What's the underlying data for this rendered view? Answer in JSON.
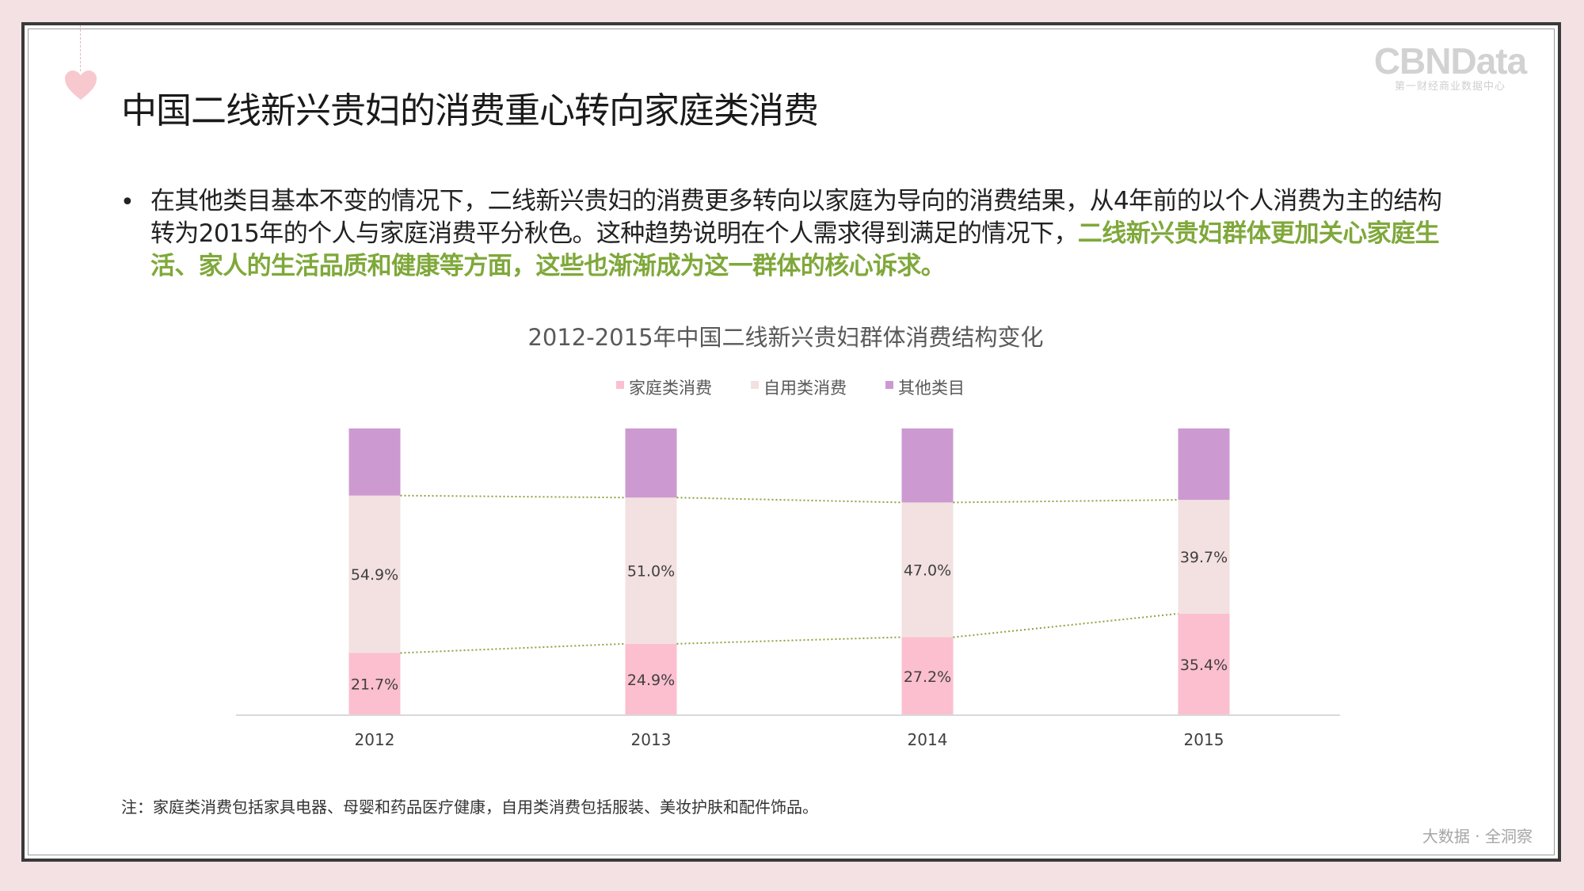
{
  "title": "中国二线新兴贵妇的消费重心转向家庭类消费",
  "logo": {
    "main": "CBNData",
    "sub": "第一财经商业数据中心"
  },
  "bullet": {
    "normal": "在其他类目基本不变的情况下，二线新兴贵妇的消费更多转向以家庭为导向的消费结果，从4年前的以个人消费为主的结构转为2015年的个人与家庭消费平分秋色。这种趋势说明在个人需求得到满足的情况下，",
    "highlight": "二线新兴贵妇群体更加关心家庭生活、家人的生活品质和健康等方面，这些也渐渐成为这一群体的核心诉求。"
  },
  "chart_data": {
    "type": "bar",
    "stacked": true,
    "title": "2012-2015年中国二线新兴贵妇群体消费结构变化",
    "categories": [
      "2012",
      "2013",
      "2014",
      "2015"
    ],
    "series": [
      {
        "name": "家庭类消费",
        "values": [
          21.7,
          24.9,
          27.2,
          35.4
        ],
        "labels": [
          "21.7%",
          "24.9%",
          "27.2%",
          "35.4%"
        ],
        "color": "#fbbfcf"
      },
      {
        "name": "自用类消费",
        "values": [
          54.9,
          51.0,
          47.0,
          39.7
        ],
        "labels": [
          "54.9%",
          "51.0%",
          "47.0%",
          "39.7%"
        ],
        "color": "#f3e0e1"
      },
      {
        "name": "其他类目",
        "values": [
          23.4,
          24.1,
          25.8,
          24.9
        ],
        "color": "#cc9ad0"
      }
    ],
    "ylim": [
      0,
      100
    ],
    "legend": "top",
    "grid": false,
    "connector_lines": {
      "color": "#8aa43f",
      "style": "dotted"
    }
  },
  "footnote": "注：家庭类消费包括家具电器、母婴和药品医疗健康，自用类消费包括服装、美妆护肤和配件饰品。",
  "tagline": "大数据 · 全洞察"
}
